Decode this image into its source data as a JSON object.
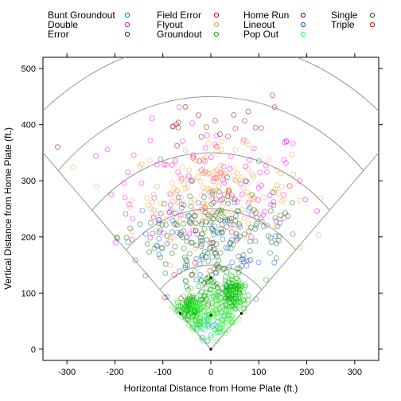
{
  "chart_data": {
    "type": "scatter",
    "xlabel": "Horizontal Distance from Home Plate (ft.)",
    "ylabel": "Vertical Distance from Home Plate (ft.)",
    "xlim": [
      -350,
      350
    ],
    "ylim": [
      -20,
      520
    ],
    "xticks": [
      -300,
      -200,
      -100,
      0,
      100,
      200,
      300
    ],
    "yticks": [
      0,
      100,
      200,
      300,
      400,
      500
    ],
    "grid": false,
    "legend_position": "top",
    "field": {
      "arc_radii_ft": [
        150,
        250,
        350,
        450
      ],
      "outer_arc_radius_ft": 550,
      "foul_line_length_ft": 600,
      "base_distance_ft": 90
    },
    "series": [
      {
        "name": "Bunt Groundout",
        "color": "#0080ff",
        "count": 20,
        "center": [
          0,
          40
        ],
        "spread": [
          40,
          25
        ]
      },
      {
        "name": "Double",
        "color": "#ff00ff",
        "count": 110,
        "center": [
          0,
          280
        ],
        "spread": [
          190,
          110
        ]
      },
      {
        "name": "Error",
        "color": "#006400",
        "count": 20,
        "center": [
          0,
          130
        ],
        "spread": [
          90,
          60
        ]
      },
      {
        "name": "Field Error",
        "color": "#ff0000",
        "count": 8,
        "center": [
          0,
          120
        ],
        "spread": [
          80,
          60
        ]
      },
      {
        "name": "Flyout",
        "color": "#ff9f3f",
        "count": 180,
        "center": [
          0,
          280
        ],
        "spread": [
          150,
          70
        ]
      },
      {
        "name": "Groundout",
        "color": "#00c000",
        "count": 260,
        "center": [
          0,
          90
        ],
        "spread": [
          70,
          40
        ]
      },
      {
        "name": "Home Run",
        "color": "#a00000",
        "count": 20,
        "center": [
          0,
          400
        ],
        "spread": [
          180,
          40
        ]
      },
      {
        "name": "Lineout",
        "color": "#0060ff",
        "count": 60,
        "center": [
          0,
          200
        ],
        "spread": [
          150,
          80
        ]
      },
      {
        "name": "Pop Out",
        "color": "#33ff33",
        "count": 120,
        "center": [
          0,
          50
        ],
        "spread": [
          90,
          40
        ]
      },
      {
        "name": "Single",
        "color": "#1c6b1c",
        "count": 180,
        "center": [
          0,
          210
        ],
        "spread": [
          150,
          70
        ]
      },
      {
        "name": "Triple",
        "color": "#ff0000",
        "count": 6,
        "center": [
          0,
          330
        ],
        "spread": [
          180,
          60
        ]
      }
    ]
  }
}
